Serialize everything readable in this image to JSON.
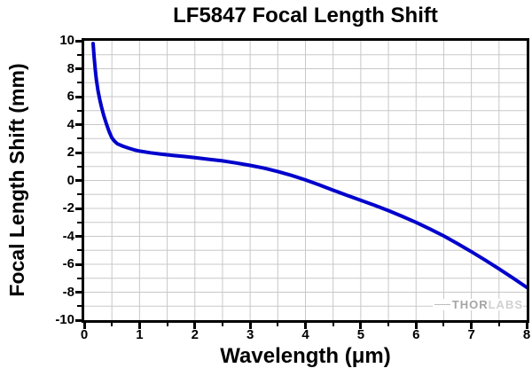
{
  "chart_data": {
    "type": "line",
    "title": "LF5847 Focal Length Shift",
    "xlabel": "Wavelength (μm)",
    "ylabel": "Focal Length Shift (mm)",
    "xlim": [
      0,
      8
    ],
    "ylim": [
      -10,
      10
    ],
    "xticks": [
      0,
      1,
      2,
      3,
      4,
      5,
      6,
      7,
      8
    ],
    "yticks": [
      10,
      8,
      6,
      4,
      2,
      0,
      -2,
      -4,
      -6,
      -8,
      -10
    ],
    "x_minor_step": 0.5,
    "y_minor_step": 1,
    "grid": true,
    "grid_color": "#c8c8c8",
    "legend": "none",
    "line_color": "#0000CC",
    "series": [
      {
        "name": "LF5847 focal length shift",
        "points": [
          [
            0.16,
            9.8
          ],
          [
            0.18,
            8.8
          ],
          [
            0.2,
            7.9
          ],
          [
            0.22,
            7.2
          ],
          [
            0.25,
            6.4
          ],
          [
            0.28,
            5.8
          ],
          [
            0.31,
            5.3
          ],
          [
            0.35,
            4.7
          ],
          [
            0.4,
            4.05
          ],
          [
            0.45,
            3.5
          ],
          [
            0.5,
            3.05
          ],
          [
            0.55,
            2.8
          ],
          [
            0.6,
            2.62
          ],
          [
            0.7,
            2.45
          ],
          [
            0.8,
            2.32
          ],
          [
            0.9,
            2.2
          ],
          [
            1.0,
            2.1
          ],
          [
            1.2,
            1.98
          ],
          [
            1.4,
            1.88
          ],
          [
            1.6,
            1.8
          ],
          [
            1.8,
            1.72
          ],
          [
            2.0,
            1.63
          ],
          [
            2.25,
            1.52
          ],
          [
            2.5,
            1.4
          ],
          [
            2.75,
            1.25
          ],
          [
            3.0,
            1.08
          ],
          [
            3.25,
            0.88
          ],
          [
            3.5,
            0.64
          ],
          [
            3.75,
            0.36
          ],
          [
            4.0,
            0.04
          ],
          [
            4.25,
            -0.32
          ],
          [
            4.5,
            -0.7
          ],
          [
            4.75,
            -1.06
          ],
          [
            5.0,
            -1.42
          ],
          [
            5.25,
            -1.78
          ],
          [
            5.5,
            -2.16
          ],
          [
            5.75,
            -2.57
          ],
          [
            6.0,
            -3.0
          ],
          [
            6.25,
            -3.47
          ],
          [
            6.5,
            -3.97
          ],
          [
            6.75,
            -4.52
          ],
          [
            7.0,
            -5.1
          ],
          [
            7.25,
            -5.7
          ],
          [
            7.5,
            -6.33
          ],
          [
            7.75,
            -6.98
          ],
          [
            8.0,
            -7.65
          ]
        ]
      }
    ],
    "watermark": {
      "thor": "THOR",
      "labs": "LABS"
    }
  }
}
